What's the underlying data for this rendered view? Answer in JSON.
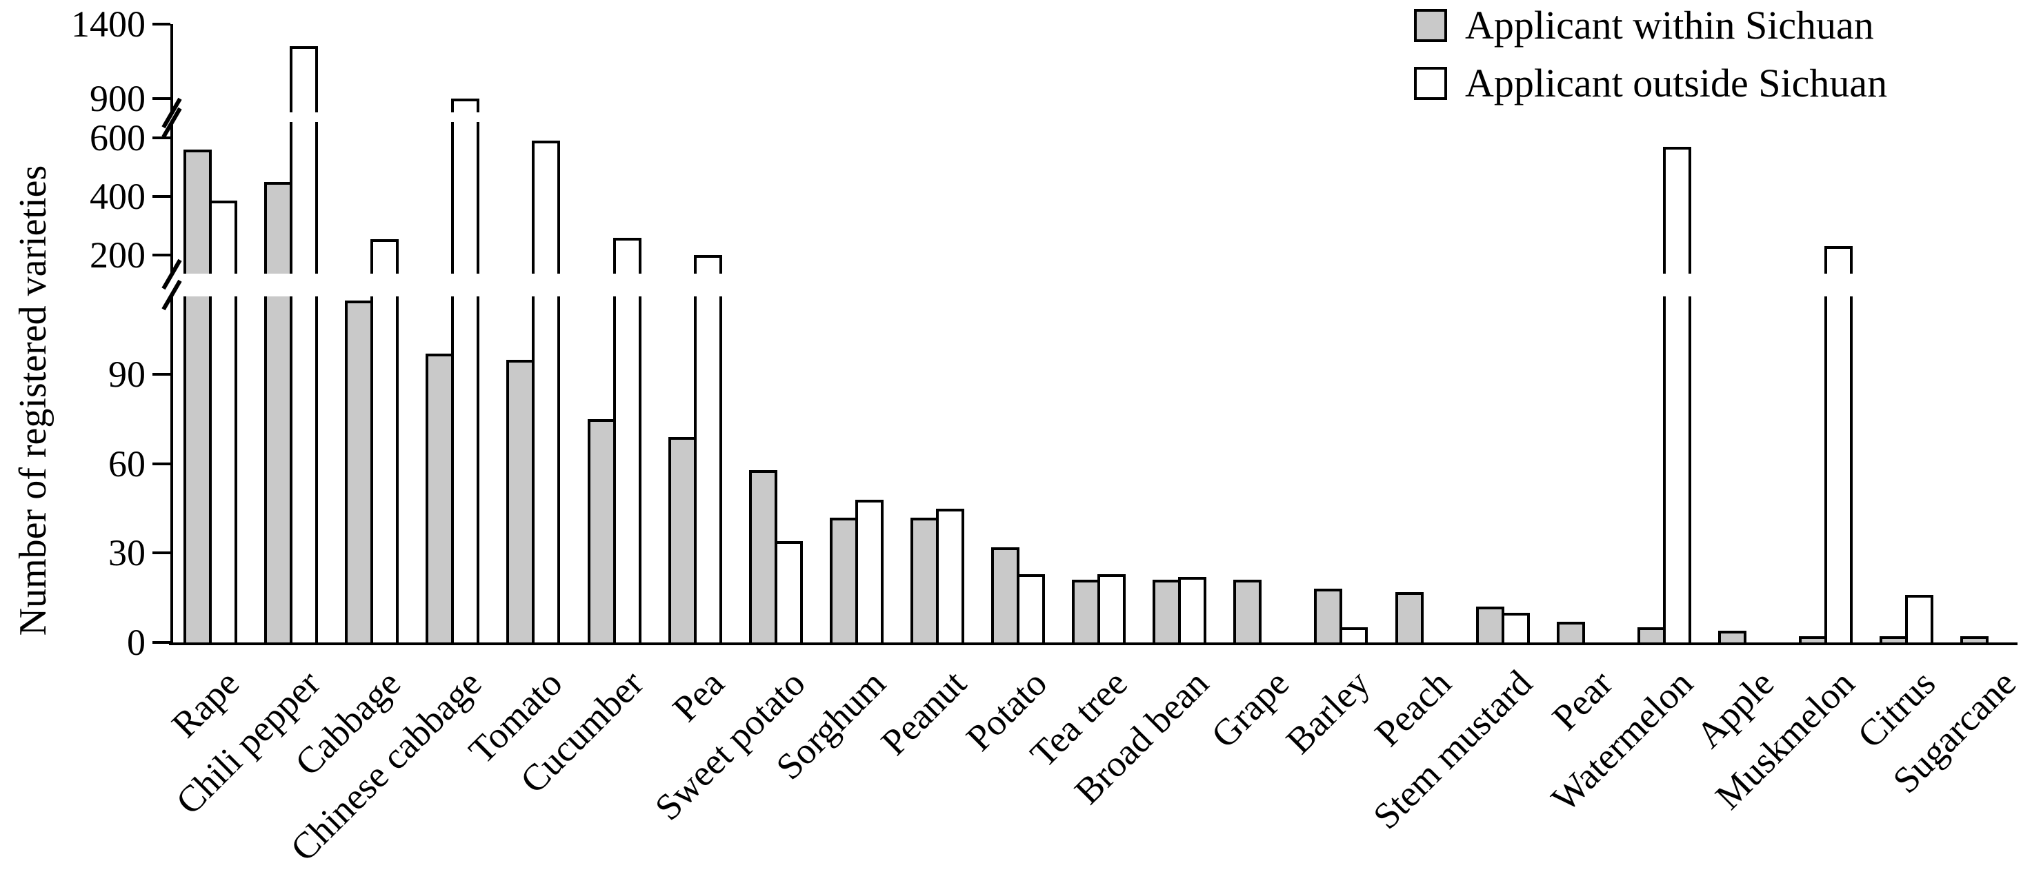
{
  "chart_data": {
    "type": "bar",
    "title": "",
    "xlabel": "",
    "ylabel": "Number of registered varieties",
    "categories": [
      "Rape",
      "Chili pepper",
      "Cabbage",
      "Chinese cabbage",
      "Tomato",
      "Cucumber",
      "Pea",
      "Sweet potato",
      "Sorghum",
      "Peanut",
      "Potato",
      "Tea tree",
      "Broad bean",
      "Grape",
      "Barley",
      "Peach",
      "Stem mustard",
      "Pear",
      "Watermelon",
      "Apple",
      "Muskmelon",
      "Citrus",
      "Sugarcane"
    ],
    "series": [
      {
        "name": "Applicant within Sichuan",
        "color": "#c9c9c9",
        "values": [
          560,
          450,
          115,
          97,
          95,
          75,
          69,
          58,
          42,
          42,
          32,
          21,
          21,
          21,
          18,
          17,
          12,
          7,
          5,
          4,
          2,
          2,
          2
        ]
      },
      {
        "name": "Applicant outside Sichuan",
        "color": "#ffffff",
        "values": [
          385,
          1250,
          255,
          900,
          590,
          260,
          200,
          34,
          48,
          45,
          23,
          23,
          22,
          0,
          5,
          0,
          10,
          0,
          570,
          0,
          230,
          16,
          0
        ]
      }
    ],
    "y_axis": {
      "ticks": [
        {
          "v": 0,
          "label": "0"
        },
        {
          "v": 30,
          "label": "30"
        },
        {
          "v": 60,
          "label": "60"
        },
        {
          "v": 90,
          "label": "90"
        },
        {
          "v": 200,
          "label": "200"
        },
        {
          "v": 400,
          "label": "400"
        },
        {
          "v": 600,
          "label": "600"
        },
        {
          "v": 900,
          "label": "900"
        },
        {
          "v": 1400,
          "label": "1400"
        }
      ],
      "axis_breaks": [
        {
          "between": [
            116,
            200
          ],
          "note": "broken axis between ~116 and 200"
        },
        {
          "between": [
            654,
            900
          ],
          "note": "broken axis between ~650 and 900"
        }
      ],
      "grid": false
    },
    "legend_position": "top-right",
    "bar_style": {
      "stroke": "#000000",
      "fill_within": "#c9c9c9",
      "fill_outside": "#ffffff"
    }
  },
  "legend": {
    "items": [
      {
        "label": "Applicant within Sichuan",
        "swatch": "#c9c9c9"
      },
      {
        "label": "Applicant outside Sichuan",
        "swatch": "#ffffff"
      }
    ]
  },
  "colors": {
    "background": "#ffffff",
    "stroke": "#000000"
  }
}
